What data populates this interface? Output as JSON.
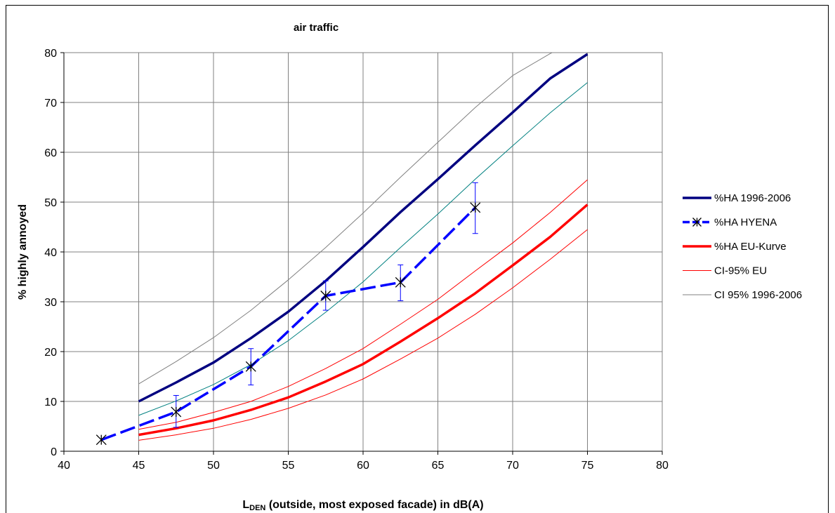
{
  "chart_data": {
    "type": "line",
    "title": "air traffic",
    "xlabel_main": "L",
    "xlabel_sub": "DEN",
    "xlabel_rest": " (outside, most exposed facade) in dB(A)",
    "ylabel": "% highly annoyed",
    "xlim": [
      40,
      80
    ],
    "ylim": [
      0,
      80
    ],
    "x_ticks": [
      40,
      45,
      50,
      55,
      60,
      65,
      70,
      75,
      80
    ],
    "y_ticks": [
      0,
      10,
      20,
      30,
      40,
      50,
      60,
      70,
      80
    ],
    "grid": true,
    "legend_position": "right",
    "series": [
      {
        "name": "%HA 1996-2006",
        "color": "#000080",
        "width": 3.5,
        "x": [
          45,
          47.5,
          50,
          52.5,
          55,
          57.5,
          60,
          62.5,
          65,
          67.5,
          70,
          72.5,
          75
        ],
        "y": [
          10,
          13.8,
          17.8,
          22.7,
          28,
          34.2,
          41,
          48,
          54.6,
          61.4,
          68,
          74.8,
          79.7
        ]
      },
      {
        "name": "%HA HYENA",
        "color": "#0000FF",
        "width": 3.5,
        "dashed": true,
        "marker": "star",
        "x": [
          42.5,
          47.5,
          52.5,
          57.5,
          62.5,
          67.5
        ],
        "y": [
          2.3,
          7.9,
          17.0,
          31.2,
          33.9,
          48.9
        ],
        "err_low": [
          2.3,
          4.8,
          13.3,
          28.3,
          30.2,
          43.7
        ],
        "err_high": [
          2.3,
          11.2,
          20.6,
          34.2,
          37.4,
          53.9
        ]
      },
      {
        "name": "%HA EU-Kurve",
        "color": "#FF0000",
        "width": 3.5,
        "x": [
          45,
          47.5,
          50,
          52.5,
          55,
          57.5,
          60,
          62.5,
          65,
          67.5,
          70,
          72.5,
          75
        ],
        "y": [
          3.3,
          4.6,
          6.2,
          8.3,
          10.8,
          14.0,
          17.5,
          22.0,
          26.7,
          31.7,
          37.3,
          43.0,
          49.5
        ]
      },
      {
        "name": "CI-95% EU",
        "color": "#FF0000",
        "width": 1,
        "x": [
          45,
          47.5,
          50,
          52.5,
          55,
          57.5,
          60,
          62.5,
          65,
          67.5,
          70,
          72.5,
          75
        ],
        "y": [
          4.4,
          5.8,
          7.8,
          10.0,
          13.0,
          16.6,
          20.6,
          25.5,
          30.5,
          36.2,
          41.8,
          47.9,
          54.5
        ]
      },
      {
        "name": "",
        "color": "#FF0000",
        "width": 1,
        "x": [
          45,
          47.5,
          50,
          52.5,
          55,
          57.5,
          60,
          62.5,
          65,
          67.5,
          70,
          72.5,
          75
        ],
        "y": [
          2.2,
          3.3,
          4.6,
          6.4,
          8.6,
          11.3,
          14.5,
          18.5,
          22.7,
          27.5,
          32.8,
          38.5,
          44.5
        ]
      },
      {
        "name": "CI 95% 1996-2006",
        "color": "#808080",
        "width": 1,
        "x": [
          45,
          47.5,
          50,
          52.5,
          55,
          57.5,
          60,
          62.5,
          65,
          67.5,
          70,
          72.5,
          73.3
        ],
        "y": [
          13.5,
          18.0,
          22.8,
          28.3,
          34.4,
          40.9,
          47.8,
          55.0,
          62.0,
          69.0,
          75.4,
          79.8,
          81
        ]
      },
      {
        "name": "",
        "color": "#008080",
        "width": 1,
        "x": [
          45,
          47.5,
          50,
          52.5,
          55,
          57.5,
          60,
          62.5,
          65,
          67.5,
          70,
          72.5,
          75
        ],
        "y": [
          7.2,
          10.1,
          13.4,
          17.4,
          22.2,
          27.9,
          34.0,
          40.9,
          47.6,
          54.6,
          61.3,
          67.9,
          74.0
        ]
      }
    ]
  }
}
